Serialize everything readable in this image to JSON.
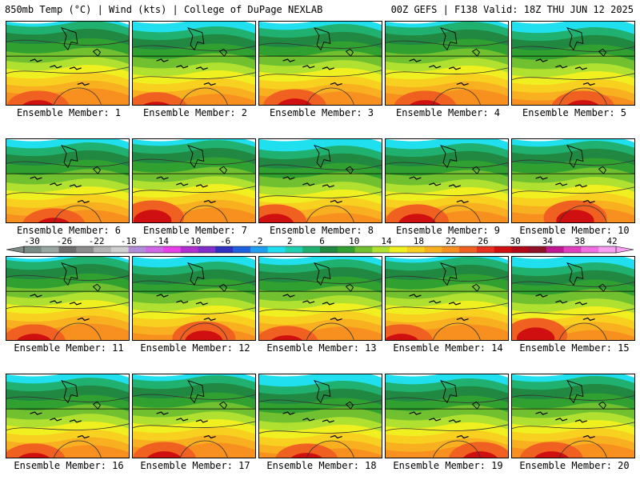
{
  "header": {
    "left_title": "850mb Temp (°C) | Wind (kts) | College of DuPage NEXLAB",
    "right_title": "00Z GEFS | F138 Valid: 18Z THU JUN 12 2025"
  },
  "members": [
    {
      "label": "Ensemble Member: 1"
    },
    {
      "label": "Ensemble Member: 2"
    },
    {
      "label": "Ensemble Member: 3"
    },
    {
      "label": "Ensemble Member: 4"
    },
    {
      "label": "Ensemble Member: 5"
    },
    {
      "label": "Ensemble Member: 6"
    },
    {
      "label": "Ensemble Member: 7"
    },
    {
      "label": "Ensemble Member: 8"
    },
    {
      "label": "Ensemble Member: 9"
    },
    {
      "label": "Ensemble Member: 10"
    },
    {
      "label": "Ensemble Member: 11"
    },
    {
      "label": "Ensemble Member: 12"
    },
    {
      "label": "Ensemble Member: 13"
    },
    {
      "label": "Ensemble Member: 14"
    },
    {
      "label": "Ensemble Member: 15"
    },
    {
      "label": "Ensemble Member: 16"
    },
    {
      "label": "Ensemble Member: 17"
    },
    {
      "label": "Ensemble Member: 18"
    },
    {
      "label": "Ensemble Member: 19"
    },
    {
      "label": "Ensemble Member: 20"
    }
  ],
  "colorbar": {
    "labels": [
      "-30",
      "-26",
      "-22",
      "-18",
      "-14",
      "-10",
      "-6",
      "-2",
      "2",
      "6",
      "10",
      "14",
      "18",
      "22",
      "26",
      "30",
      "34",
      "38",
      "42"
    ],
    "colors": [
      "#7a8a84",
      "#9aa6a0",
      "#6e6e6e",
      "#8c8c8c",
      "#b4b4b4",
      "#d0d0d0",
      "#b48cd8",
      "#d066e8",
      "#e840e8",
      "#b030d0",
      "#8030c8",
      "#3030c0",
      "#2060e0",
      "#20a0f0",
      "#20e0f0",
      "#20d0b0",
      "#20b070",
      "#208840",
      "#30a030",
      "#70c030",
      "#b0e030",
      "#f0f020",
      "#f8d020",
      "#f8b020",
      "#f89020",
      "#f06020",
      "#e83020",
      "#d01010",
      "#b00818",
      "#901028",
      "#c01890",
      "#e040c0",
      "#f070e0",
      "#f8a0f0"
    ]
  },
  "palette": {
    "deep_red": "#d01010",
    "red": "#f06020",
    "orange": "#f89020",
    "amber": "#f8b020",
    "gold": "#f8d020",
    "yellow": "#f0f020",
    "lime": "#b0e030",
    "light_green": "#70c030",
    "green": "#30a030",
    "dark_green": "#208840",
    "teal": "#20b070",
    "cyan": "#20e0f0"
  }
}
